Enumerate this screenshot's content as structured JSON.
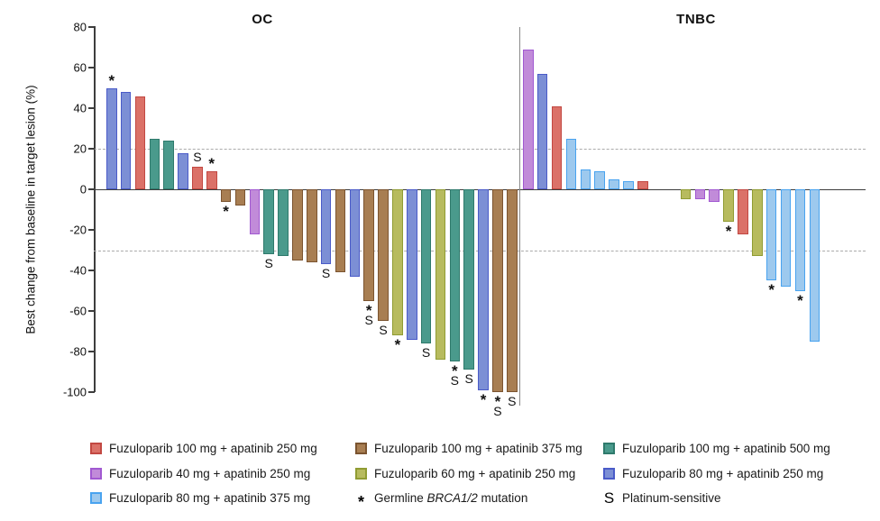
{
  "chart_data": {
    "type": "bar",
    "subtype": "waterfall",
    "title": "",
    "ylabel": "Best change from baseline in target lesion (%)",
    "ylim": [
      -100,
      80
    ],
    "yticks": [
      80,
      60,
      40,
      20,
      0,
      -20,
      -40,
      -60,
      -80,
      -100
    ],
    "reference_lines": [
      20,
      -30
    ],
    "legend_position": "bottom",
    "groups": {
      "f100a250": {
        "label": "Fuzuloparib 100 mg + apatinib 250 mg",
        "fill": "#DB7168",
        "stroke": "#C24842"
      },
      "f40a250": {
        "label": "Fuzuloparib 40 mg + apatinib 250 mg",
        "fill": "#C18BD9",
        "stroke": "#A159D1"
      },
      "f80a375": {
        "label": "Fuzuloparib 80 mg + apatinib 375 mg",
        "fill": "#9DC9EE",
        "stroke": "#49A3EF"
      },
      "f100a375": {
        "label": "Fuzuloparib 100 mg + apatinib 375 mg",
        "fill": "#A87E52",
        "stroke": "#7B5430"
      },
      "f60a250": {
        "label": "Fuzuloparib 60 mg + apatinib 250 mg",
        "fill": "#B7BB5E",
        "stroke": "#909C33"
      },
      "f100a500": {
        "label": "Fuzuloparib 100 mg + apatinib 500 mg",
        "fill": "#4A9A8C",
        "stroke": "#2F7A6C"
      },
      "f80a250": {
        "label": "Fuzuloparib 80 mg + apatinib 250 mg",
        "fill": "#7C8FD5",
        "stroke": "#4A5BC8"
      }
    },
    "panels": [
      {
        "title": "OC",
        "bars": [
          {
            "value": 50,
            "group": "f80a250",
            "mark": "*"
          },
          {
            "value": 48,
            "group": "f80a250"
          },
          {
            "value": 46,
            "group": "f100a250"
          },
          {
            "value": 25,
            "group": "f100a500"
          },
          {
            "value": 24,
            "group": "f100a500"
          },
          {
            "value": 18,
            "group": "f80a250"
          },
          {
            "value": 11,
            "group": "f100a250",
            "mark": "S"
          },
          {
            "value": 9,
            "group": "f100a250",
            "mark": "*"
          },
          {
            "value": -6,
            "group": "f100a375",
            "mark": "*"
          },
          {
            "value": -8,
            "group": "f100a375"
          },
          {
            "value": -22,
            "group": "f40a250"
          },
          {
            "value": -32,
            "group": "f100a500",
            "mark": "S"
          },
          {
            "value": -33,
            "group": "f100a500"
          },
          {
            "value": -35,
            "group": "f100a375"
          },
          {
            "value": -36,
            "group": "f100a375"
          },
          {
            "value": -37,
            "group": "f80a250",
            "mark": "S"
          },
          {
            "value": -41,
            "group": "f100a375"
          },
          {
            "value": -43,
            "group": "f80a250"
          },
          {
            "value": -55,
            "group": "f100a375",
            "mark": "*S"
          },
          {
            "value": -65,
            "group": "f100a375",
            "mark": "S"
          },
          {
            "value": -72,
            "group": "f60a250",
            "mark": "*"
          },
          {
            "value": -74,
            "group": "f80a250"
          },
          {
            "value": -76,
            "group": "f100a500",
            "mark": "S"
          },
          {
            "value": -84,
            "group": "f60a250"
          },
          {
            "value": -85,
            "group": "f100a500",
            "mark": "*S"
          },
          {
            "value": -89,
            "group": "f100a500",
            "mark": "S"
          },
          {
            "value": -99,
            "group": "f80a250",
            "mark": "*"
          },
          {
            "value": -100,
            "group": "f100a375",
            "mark": "*S"
          },
          {
            "value": -100,
            "group": "f100a375",
            "mark": "S"
          }
        ]
      },
      {
        "title": "TNBC",
        "bars": [
          {
            "slot": 0,
            "value": 69,
            "group": "f40a250"
          },
          {
            "slot": 1,
            "value": 57,
            "group": "f80a250"
          },
          {
            "slot": 2,
            "value": 41,
            "group": "f100a250"
          },
          {
            "slot": 3,
            "value": 25,
            "group": "f80a375"
          },
          {
            "slot": 4,
            "value": 10,
            "group": "f80a375"
          },
          {
            "slot": 5,
            "value": 9,
            "group": "f80a375"
          },
          {
            "slot": 6,
            "value": 5,
            "group": "f80a375"
          },
          {
            "slot": 7,
            "value": 4,
            "group": "f80a375"
          },
          {
            "slot": 8,
            "value": 4,
            "group": "f100a250"
          },
          {
            "slot": 11,
            "value": -5,
            "group": "f60a250"
          },
          {
            "slot": 12,
            "value": -5,
            "group": "f40a250"
          },
          {
            "slot": 13,
            "value": -6,
            "group": "f40a250"
          },
          {
            "slot": 14,
            "value": -16,
            "group": "f60a250",
            "mark": "*"
          },
          {
            "slot": 15,
            "value": -22,
            "group": "f100a250"
          },
          {
            "slot": 16,
            "value": -33,
            "group": "f60a250"
          },
          {
            "slot": 17,
            "value": -45,
            "group": "f80a375",
            "mark": "*"
          },
          {
            "slot": 18,
            "value": -48,
            "group": "f80a375"
          },
          {
            "slot": 19,
            "value": -50,
            "group": "f80a375",
            "mark": "*"
          },
          {
            "slot": 20,
            "value": -75,
            "group": "f80a375"
          }
        ]
      }
    ],
    "legend": {
      "columns": [
        {
          "items": [
            {
              "type": "swatch",
              "group": "f100a250"
            },
            {
              "type": "swatch",
              "group": "f40a250"
            },
            {
              "type": "swatch",
              "group": "f80a375"
            }
          ]
        },
        {
          "items": [
            {
              "type": "swatch",
              "group": "f100a375"
            },
            {
              "type": "swatch",
              "group": "f60a250"
            },
            {
              "type": "note",
              "symbol": "*",
              "prefix": "Germline ",
              "gene": "BRCA1/2",
              "suffix": " mutation"
            }
          ]
        },
        {
          "items": [
            {
              "type": "swatch",
              "group": "f100a500"
            },
            {
              "type": "swatch",
              "group": "f80a250"
            },
            {
              "type": "note",
              "symbol": "S",
              "prefix": "Platinum-sensitive",
              "gene": "",
              "suffix": ""
            }
          ]
        }
      ]
    }
  }
}
